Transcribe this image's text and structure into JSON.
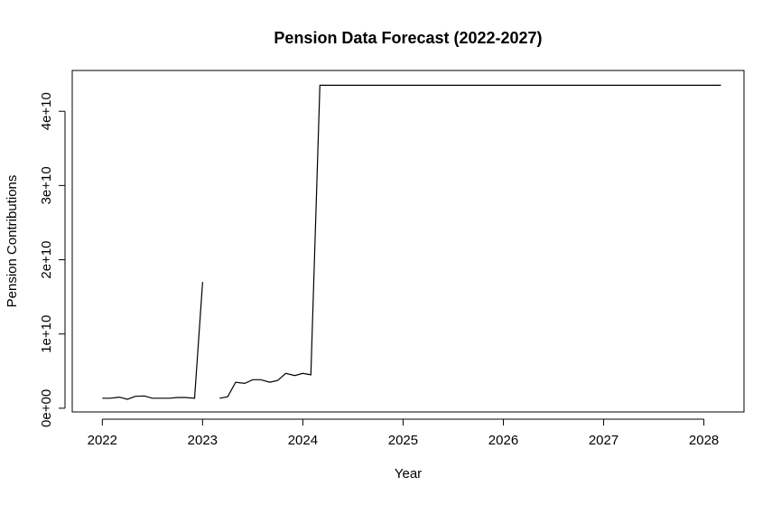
{
  "chart_data": {
    "type": "line",
    "title": "Pension Data Forecast (2022-2027)",
    "xlabel": "Year",
    "ylabel": "Pension Contributions",
    "xlim": [
      2021.7,
      2028.4
    ],
    "ylim": [
      -500000000,
      45500000000
    ],
    "x_ticks": [
      2022,
      2023,
      2024,
      2025,
      2026,
      2027,
      2028
    ],
    "x_tick_labels": [
      "2022",
      "2023",
      "2024",
      "2025",
      "2026",
      "2027",
      "2028"
    ],
    "y_ticks": [
      0,
      10000000000,
      20000000000,
      30000000000,
      40000000000
    ],
    "y_tick_labels": [
      "0e+00",
      "1e+10",
      "2e+10",
      "3e+10",
      "4e+10"
    ],
    "grid": false,
    "legend": "none",
    "line_color": "#000000",
    "series": [
      {
        "segments": [
          [
            [
              2022.0,
              1350000000
            ],
            [
              2022.08,
              1350000000
            ],
            [
              2022.17,
              1500000000
            ],
            [
              2022.25,
              1200000000
            ],
            [
              2022.33,
              1600000000
            ],
            [
              2022.42,
              1650000000
            ],
            [
              2022.5,
              1350000000
            ],
            [
              2022.58,
              1350000000
            ],
            [
              2022.67,
              1350000000
            ],
            [
              2022.75,
              1450000000
            ],
            [
              2022.83,
              1450000000
            ],
            [
              2022.92,
              1350000000
            ],
            [
              2023.0,
              17000000000
            ]
          ],
          [
            [
              2023.17,
              1350000000
            ],
            [
              2023.25,
              1550000000
            ],
            [
              2023.33,
              3500000000
            ],
            [
              2023.42,
              3350000000
            ],
            [
              2023.5,
              3850000000
            ],
            [
              2023.58,
              3850000000
            ],
            [
              2023.67,
              3500000000
            ],
            [
              2023.75,
              3750000000
            ],
            [
              2023.83,
              4700000000
            ],
            [
              2023.92,
              4400000000
            ],
            [
              2024.0,
              4700000000
            ],
            [
              2024.08,
              4500000000
            ],
            [
              2024.17,
              43500000000
            ],
            [
              2028.17,
              43500000000
            ]
          ]
        ]
      }
    ]
  }
}
